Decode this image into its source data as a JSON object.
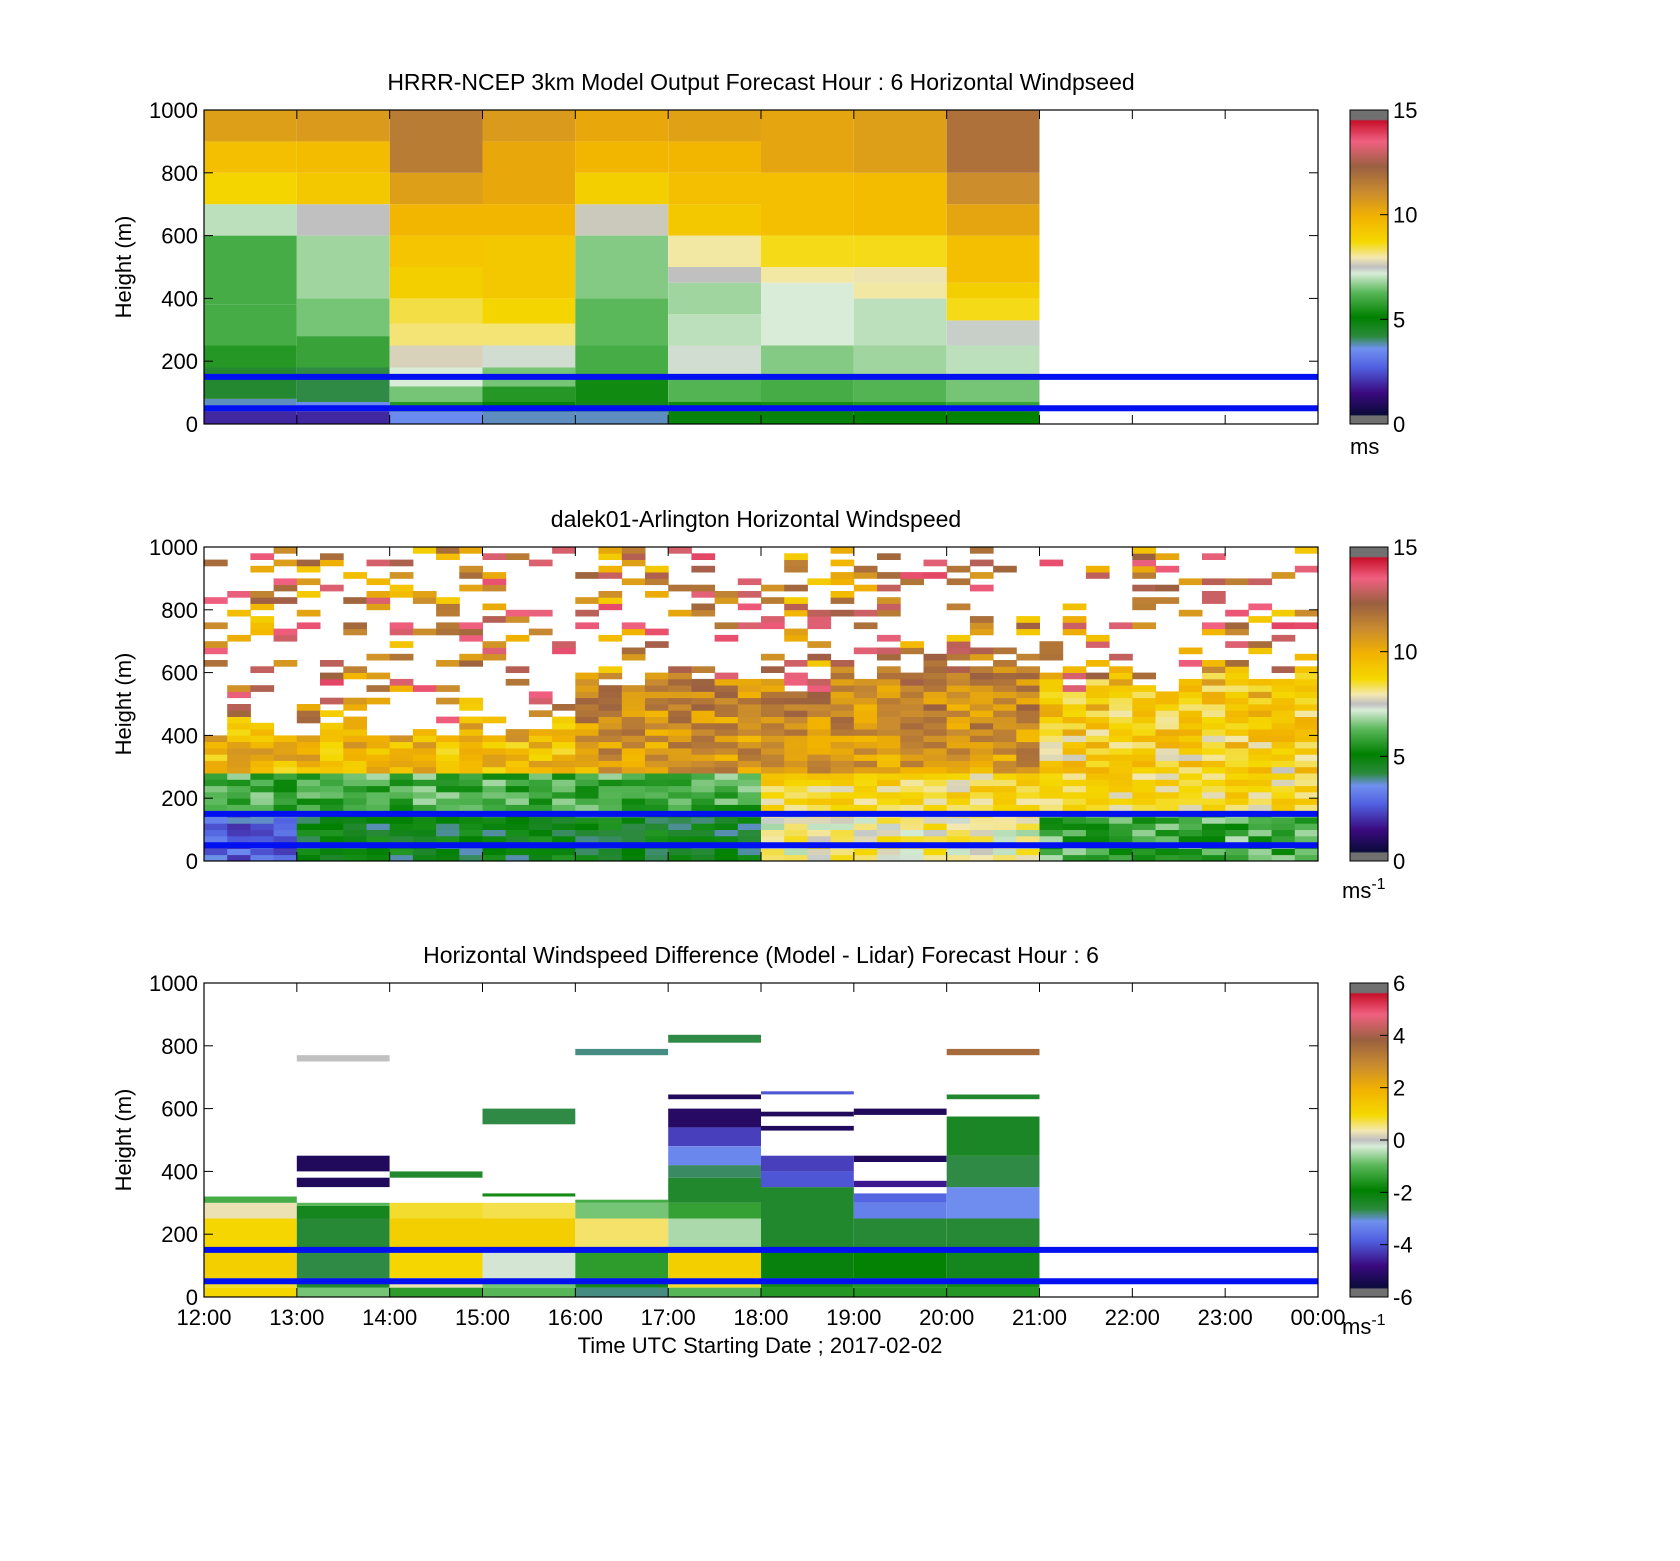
{
  "figure": {
    "xlabel": "Time UTC  Starting Date ; 2017-02-02",
    "x_tick_labels": [
      "12:00",
      "13:00",
      "14:00",
      "15:00",
      "16:00",
      "17:00",
      "18:00",
      "19:00",
      "20:00",
      "21:00",
      "22:00",
      "23:00",
      "00:00"
    ]
  },
  "chart_data": [
    {
      "type": "heatmap",
      "title": "HRRR-NCEP 3km Model Output   Forecast Hour : 6 Horizontal Windpseed",
      "ylabel": "Height (m)",
      "ylim": [
        0,
        1000
      ],
      "y_ticks": [
        0,
        200,
        400,
        600,
        800,
        1000
      ],
      "xlim_hours": [
        12,
        24
      ],
      "reference_lines_m": [
        50,
        150
      ],
      "colorbar": {
        "range": [
          0,
          15
        ],
        "ticks": [
          0,
          5,
          10,
          15
        ],
        "unit": "ms"
      },
      "columns": [
        {
          "start": "12:00",
          "cells": [
            [
              0,
              40,
              1.5
            ],
            [
              40,
              60,
              2.5
            ],
            [
              60,
              80,
              3.5
            ],
            [
              80,
              180,
              4.2
            ],
            [
              180,
              250,
              5.5
            ],
            [
              250,
              380,
              6.0
            ],
            [
              380,
              600,
              6.0
            ],
            [
              600,
              700,
              7.0
            ],
            [
              700,
              800,
              8.8
            ],
            [
              800,
              900,
              9.5
            ],
            [
              900,
              1000,
              10.5
            ]
          ]
        },
        {
          "start": "13:00",
          "cells": [
            [
              0,
              40,
              1.5
            ],
            [
              40,
              70,
              3.2
            ],
            [
              70,
              180,
              4.0
            ],
            [
              180,
              280,
              5.8
            ],
            [
              280,
              400,
              6.5
            ],
            [
              400,
              600,
              6.8
            ],
            [
              600,
              700,
              7.5
            ],
            [
              700,
              800,
              9.2
            ],
            [
              800,
              900,
              9.6
            ],
            [
              900,
              1000,
              10.6
            ]
          ]
        },
        {
          "start": "14:00",
          "cells": [
            [
              0,
              40,
              3.2
            ],
            [
              40,
              70,
              5.5
            ],
            [
              70,
              120,
              6.5
            ],
            [
              120,
              180,
              7.2
            ],
            [
              180,
              250,
              7.7
            ],
            [
              250,
              320,
              8.2
            ],
            [
              320,
              400,
              8.4
            ],
            [
              400,
              500,
              9.0
            ],
            [
              500,
              600,
              9.3
            ],
            [
              600,
              700,
              9.8
            ],
            [
              700,
              800,
              10.5
            ],
            [
              800,
              1000,
              11.5
            ]
          ]
        },
        {
          "start": "15:00",
          "cells": [
            [
              0,
              40,
              3.5
            ],
            [
              40,
              70,
              4.8
            ],
            [
              70,
              120,
              5.5
            ],
            [
              120,
              180,
              6.5
            ],
            [
              180,
              250,
              7.3
            ],
            [
              250,
              320,
              8.2
            ],
            [
              320,
              400,
              8.8
            ],
            [
              400,
              600,
              9.2
            ],
            [
              600,
              700,
              9.8
            ],
            [
              700,
              900,
              10.2
            ],
            [
              900,
              1000,
              10.6
            ]
          ]
        },
        {
          "start": "16:00",
          "cells": [
            [
              0,
              40,
              3.5
            ],
            [
              40,
              70,
              4.5
            ],
            [
              70,
              150,
              5.2
            ],
            [
              150,
              250,
              6.0
            ],
            [
              250,
              400,
              6.3
            ],
            [
              400,
              600,
              6.6
            ],
            [
              600,
              700,
              7.6
            ],
            [
              700,
              800,
              9.0
            ],
            [
              800,
              900,
              9.8
            ],
            [
              900,
              1000,
              10.2
            ]
          ]
        },
        {
          "start": "17:00",
          "cells": [
            [
              0,
              40,
              4.8
            ],
            [
              40,
              70,
              5.2
            ],
            [
              70,
              150,
              6.2
            ],
            [
              150,
              250,
              7.3
            ],
            [
              250,
              350,
              7.0
            ],
            [
              350,
              450,
              6.8
            ],
            [
              450,
              500,
              7.5
            ],
            [
              500,
              600,
              8.0
            ],
            [
              600,
              700,
              9.2
            ],
            [
              700,
              800,
              9.5
            ],
            [
              800,
              900,
              9.8
            ],
            [
              900,
              1000,
              10.4
            ]
          ]
        },
        {
          "start": "18:00",
          "cells": [
            [
              0,
              40,
              4.8
            ],
            [
              40,
              70,
              5.3
            ],
            [
              70,
              150,
              6.0
            ],
            [
              150,
              250,
              6.6
            ],
            [
              250,
              450,
              7.2
            ],
            [
              450,
              500,
              8.0
            ],
            [
              500,
              600,
              8.6
            ],
            [
              600,
              800,
              9.5
            ],
            [
              800,
              1000,
              10.3
            ]
          ]
        },
        {
          "start": "19:00",
          "cells": [
            [
              0,
              40,
              4.9
            ],
            [
              40,
              70,
              5.5
            ],
            [
              70,
              150,
              6.2
            ],
            [
              150,
              250,
              6.8
            ],
            [
              250,
              400,
              7.0
            ],
            [
              400,
              450,
              8.0
            ],
            [
              450,
              500,
              7.9
            ],
            [
              500,
              600,
              8.6
            ],
            [
              600,
              800,
              9.6
            ],
            [
              800,
              1000,
              10.5
            ]
          ]
        },
        {
          "start": "20:00",
          "cells": [
            [
              0,
              40,
              5.0
            ],
            [
              40,
              70,
              5.8
            ],
            [
              70,
              150,
              6.5
            ],
            [
              150,
              250,
              7.0
            ],
            [
              250,
              330,
              7.4
            ],
            [
              330,
              400,
              8.6
            ],
            [
              400,
              450,
              9.0
            ],
            [
              450,
              600,
              9.5
            ],
            [
              600,
              700,
              10.3
            ],
            [
              700,
              800,
              11.0
            ],
            [
              800,
              1000,
              11.8
            ]
          ]
        }
      ]
    },
    {
      "type": "heatmap",
      "title": "dalek01-Arlington  Horizontal Windspeed",
      "ylabel": "Height (m)",
      "ylim": [
        0,
        1000
      ],
      "y_ticks": [
        0,
        200,
        400,
        600,
        800,
        1000
      ],
      "xlim_hours": [
        12,
        24
      ],
      "reference_lines_m": [
        50,
        150
      ],
      "colorbar": {
        "range": [
          0,
          15
        ],
        "ticks": [
          0,
          5,
          10,
          15
        ],
        "unit": "ms",
        "unit_superscript": "-1"
      }
    },
    {
      "type": "heatmap",
      "title": "Horizontal Windspeed Difference (Model - Lidar) Forecast Hour : 6",
      "ylabel": "Height (m)",
      "ylim": [
        0,
        1000
      ],
      "y_ticks": [
        0,
        200,
        400,
        600,
        800,
        1000
      ],
      "xlim_hours": [
        12,
        24
      ],
      "reference_lines_m": [
        50,
        150
      ],
      "colorbar": {
        "range": [
          -6,
          6
        ],
        "ticks": [
          -6,
          -4,
          -2,
          0,
          2,
          4,
          6
        ],
        "unit": "ms",
        "unit_superscript": "-1"
      },
      "columns": [
        {
          "start": "12:00",
          "cells": [
            [
              0,
              30,
              1.0
            ],
            [
              30,
              60,
              0.8
            ],
            [
              60,
              150,
              1.2
            ],
            [
              150,
              250,
              1.0
            ],
            [
              250,
              300,
              0.3
            ],
            [
              300,
              320,
              -1.2
            ]
          ]
        },
        {
          "start": "13:00",
          "cells": [
            [
              0,
              30,
              -0.8
            ],
            [
              30,
              60,
              -2.6
            ],
            [
              60,
              150,
              -2.8
            ],
            [
              150,
              250,
              -2.7
            ],
            [
              250,
              290,
              -2.4
            ],
            [
              290,
              300,
              -1.0
            ],
            [
              350,
              380,
              -5.6
            ],
            [
              400,
              450,
              -5.6
            ],
            [
              750,
              770,
              0.0
            ]
          ]
        },
        {
          "start": "14:00",
          "cells": [
            [
              0,
              30,
              -1.5
            ],
            [
              30,
              60,
              0.3
            ],
            [
              60,
              150,
              1.0
            ],
            [
              150,
              250,
              1.2
            ],
            [
              250,
              300,
              0.8
            ],
            [
              380,
              400,
              -2.6
            ]
          ]
        },
        {
          "start": "15:00",
          "cells": [
            [
              0,
              30,
              -1.0
            ],
            [
              30,
              60,
              -0.8
            ],
            [
              60,
              150,
              -0.2
            ],
            [
              150,
              250,
              1.2
            ],
            [
              250,
              300,
              0.7
            ],
            [
              320,
              330,
              -1.8
            ],
            [
              550,
              600,
              -2.8
            ]
          ]
        },
        {
          "start": "16:00",
          "cells": [
            [
              0,
              30,
              -3.0
            ],
            [
              30,
              60,
              -2.4
            ],
            [
              60,
              150,
              -1.5
            ],
            [
              150,
              250,
              0.6
            ],
            [
              250,
              300,
              -0.8
            ],
            [
              300,
              310,
              -1.2
            ],
            [
              770,
              790,
              -3.0
            ]
          ]
        },
        {
          "start": "17:00",
          "cells": [
            [
              0,
              30,
              -1.0
            ],
            [
              30,
              60,
              0.8
            ],
            [
              60,
              150,
              1.2
            ],
            [
              150,
              250,
              -0.5
            ],
            [
              250,
              300,
              -1.4
            ],
            [
              300,
              380,
              -2.6
            ],
            [
              380,
              420,
              -2.9
            ],
            [
              420,
              480,
              -3.5
            ],
            [
              480,
              540,
              -4.5
            ],
            [
              540,
              600,
              -5.5
            ],
            [
              630,
              645,
              -5.6
            ],
            [
              810,
              835,
              -2.8
            ]
          ]
        },
        {
          "start": "18:00",
          "cells": [
            [
              0,
              30,
              -1.6
            ],
            [
              30,
              60,
              -1.8
            ],
            [
              60,
              150,
              -2.2
            ],
            [
              150,
              250,
              -2.6
            ],
            [
              250,
              350,
              -2.6
            ],
            [
              350,
              400,
              -4.2
            ],
            [
              400,
              450,
              -4.5
            ],
            [
              530,
              545,
              -5.6
            ],
            [
              575,
              590,
              -5.6
            ],
            [
              645,
              655,
              -4.2
            ]
          ]
        },
        {
          "start": "19:00",
          "cells": [
            [
              0,
              30,
              -1.6
            ],
            [
              30,
              60,
              -1.6
            ],
            [
              60,
              150,
              -2.0
            ],
            [
              150,
              250,
              -2.7
            ],
            [
              250,
              300,
              -3.6
            ],
            [
              300,
              330,
              -4.0
            ],
            [
              350,
              370,
              -5.0
            ],
            [
              430,
              450,
              -5.6
            ],
            [
              580,
              600,
              -5.6
            ]
          ]
        },
        {
          "start": "20:00",
          "cells": [
            [
              0,
              30,
              -1.6
            ],
            [
              30,
              60,
              -1.8
            ],
            [
              60,
              150,
              -2.4
            ],
            [
              150,
              250,
              -2.7
            ],
            [
              250,
              350,
              -3.4
            ],
            [
              350,
              450,
              -2.8
            ],
            [
              450,
              575,
              -2.5
            ],
            [
              630,
              645,
              -2.6
            ],
            [
              770,
              790,
              3.6
            ]
          ]
        }
      ]
    }
  ]
}
